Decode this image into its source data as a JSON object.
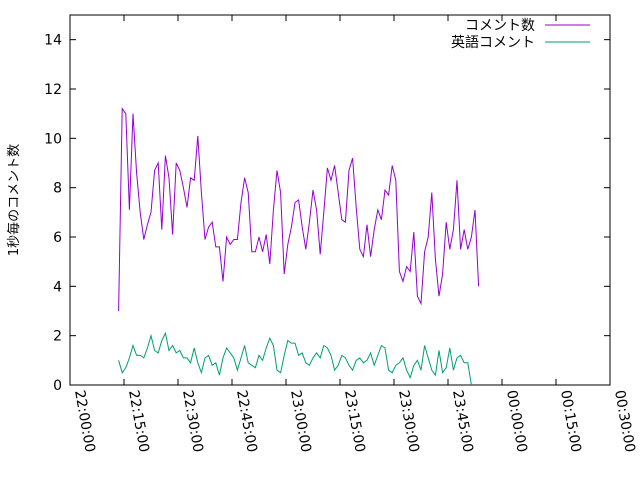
{
  "chart_data": {
    "type": "line",
    "title": "",
    "xlabel": "",
    "ylabel": "1秒毎のコメント数",
    "x_range": [
      "22:00:00",
      "00:30:00"
    ],
    "ylim": [
      0,
      15
    ],
    "y_ticks": [
      "0",
      "2",
      "4",
      "6",
      "8",
      "10",
      "12",
      "14"
    ],
    "x_ticks": [
      "22:00:00",
      "22:15:00",
      "22:30:00",
      "22:45:00",
      "23:00:00",
      "23:15:00",
      "23:30:00",
      "23:45:00",
      "00:00:00",
      "00:15:00",
      "00:30:00"
    ],
    "grid": false,
    "legend_position": "top-right",
    "series": [
      {
        "name": "コメント数",
        "color": "#9400d3",
        "values": [
          [
            "22:13:30",
            3.0
          ],
          [
            "22:14:30",
            11.2
          ],
          [
            "22:15:30",
            11.0
          ],
          [
            "22:16:30",
            7.1
          ],
          [
            "22:17:30",
            11.0
          ],
          [
            "22:18:30",
            8.6
          ],
          [
            "22:19:30",
            7.0
          ],
          [
            "22:20:30",
            5.9
          ],
          [
            "22:21:30",
            6.5
          ],
          [
            "22:22:30",
            7.0
          ],
          [
            "22:23:30",
            8.7
          ],
          [
            "22:24:30",
            9.0
          ],
          [
            "22:25:30",
            6.3
          ],
          [
            "22:26:30",
            9.3
          ],
          [
            "22:27:30",
            8.4
          ],
          [
            "22:28:30",
            6.1
          ],
          [
            "22:29:30",
            9.0
          ],
          [
            "22:30:30",
            8.7
          ],
          [
            "22:31:30",
            8.0
          ],
          [
            "22:32:30",
            7.2
          ],
          [
            "22:33:30",
            8.4
          ],
          [
            "22:34:30",
            8.3
          ],
          [
            "22:35:30",
            10.1
          ],
          [
            "22:36:30",
            7.8
          ],
          [
            "22:37:30",
            5.9
          ],
          [
            "22:38:30",
            6.4
          ],
          [
            "22:39:30",
            6.6
          ],
          [
            "22:40:30",
            5.6
          ],
          [
            "22:41:30",
            5.6
          ],
          [
            "22:42:30",
            4.2
          ],
          [
            "22:43:30",
            6.0
          ],
          [
            "22:44:30",
            5.7
          ],
          [
            "22:45:30",
            5.9
          ],
          [
            "22:46:30",
            5.9
          ],
          [
            "22:47:30",
            7.4
          ],
          [
            "22:48:30",
            8.4
          ],
          [
            "22:49:30",
            7.8
          ],
          [
            "22:50:30",
            5.4
          ],
          [
            "22:51:30",
            5.4
          ],
          [
            "22:52:30",
            6.0
          ],
          [
            "22:53:30",
            5.4
          ],
          [
            "22:54:30",
            6.1
          ],
          [
            "22:55:30",
            4.9
          ],
          [
            "22:56:30",
            7.1
          ],
          [
            "22:57:30",
            8.7
          ],
          [
            "22:58:30",
            7.8
          ],
          [
            "22:59:30",
            4.5
          ],
          [
            "23:00:30",
            5.7
          ],
          [
            "23:01:30",
            6.4
          ],
          [
            "23:02:30",
            7.4
          ],
          [
            "23:03:30",
            7.5
          ],
          [
            "23:04:30",
            6.4
          ],
          [
            "23:05:30",
            5.5
          ],
          [
            "23:06:30",
            6.6
          ],
          [
            "23:07:30",
            7.9
          ],
          [
            "23:08:30",
            7.1
          ],
          [
            "23:09:30",
            5.3
          ],
          [
            "23:10:30",
            7.0
          ],
          [
            "23:11:30",
            8.8
          ],
          [
            "23:12:30",
            8.3
          ],
          [
            "23:13:30",
            8.9
          ],
          [
            "23:14:30",
            7.8
          ],
          [
            "23:15:30",
            6.7
          ],
          [
            "23:16:30",
            6.6
          ],
          [
            "23:17:30",
            8.7
          ],
          [
            "23:18:30",
            9.2
          ],
          [
            "23:19:30",
            7.2
          ],
          [
            "23:20:30",
            5.5
          ],
          [
            "23:21:30",
            5.2
          ],
          [
            "23:22:30",
            6.5
          ],
          [
            "23:23:30",
            5.2
          ],
          [
            "23:24:30",
            6.3
          ],
          [
            "23:25:30",
            7.1
          ],
          [
            "23:26:30",
            6.7
          ],
          [
            "23:27:30",
            7.9
          ],
          [
            "23:28:30",
            7.7
          ],
          [
            "23:29:30",
            8.9
          ],
          [
            "23:30:30",
            8.3
          ],
          [
            "23:31:30",
            4.6
          ],
          [
            "23:32:30",
            4.2
          ],
          [
            "23:33:30",
            4.8
          ],
          [
            "23:34:30",
            4.6
          ],
          [
            "23:35:30",
            6.2
          ],
          [
            "23:36:30",
            3.6
          ],
          [
            "23:37:30",
            3.3
          ],
          [
            "23:38:30",
            5.4
          ],
          [
            "23:39:30",
            6.0
          ],
          [
            "23:40:30",
            7.8
          ],
          [
            "23:41:30",
            5.1
          ],
          [
            "23:42:30",
            3.6
          ],
          [
            "23:43:30",
            4.5
          ],
          [
            "23:44:30",
            6.6
          ],
          [
            "23:45:30",
            5.5
          ],
          [
            "23:46:30",
            6.3
          ],
          [
            "23:47:30",
            8.3
          ],
          [
            "23:48:30",
            5.5
          ],
          [
            "23:49:30",
            6.3
          ],
          [
            "23:50:30",
            5.5
          ],
          [
            "23:51:30",
            6.0
          ],
          [
            "23:52:30",
            7.1
          ],
          [
            "23:53:30",
            4.0
          ]
        ]
      },
      {
        "name": "英語コメント",
        "color": "#009e73",
        "values": [
          [
            "22:13:30",
            1.0
          ],
          [
            "22:14:30",
            0.5
          ],
          [
            "22:15:30",
            0.7
          ],
          [
            "22:16:30",
            1.1
          ],
          [
            "22:17:30",
            1.6
          ],
          [
            "22:18:30",
            1.2
          ],
          [
            "22:19:30",
            1.2
          ],
          [
            "22:20:30",
            1.1
          ],
          [
            "22:21:30",
            1.5
          ],
          [
            "22:22:30",
            2.0
          ],
          [
            "22:23:30",
            1.4
          ],
          [
            "22:24:30",
            1.3
          ],
          [
            "22:25:30",
            1.8
          ],
          [
            "22:26:30",
            2.1
          ],
          [
            "22:27:30",
            1.4
          ],
          [
            "22:28:30",
            1.6
          ],
          [
            "22:29:30",
            1.3
          ],
          [
            "22:30:30",
            1.4
          ],
          [
            "22:31:30",
            1.1
          ],
          [
            "22:32:30",
            1.1
          ],
          [
            "22:33:30",
            0.9
          ],
          [
            "22:34:30",
            1.5
          ],
          [
            "22:35:30",
            0.9
          ],
          [
            "22:36:30",
            0.5
          ],
          [
            "22:37:30",
            1.1
          ],
          [
            "22:38:30",
            1.2
          ],
          [
            "22:39:30",
            0.8
          ],
          [
            "22:40:30",
            0.9
          ],
          [
            "22:41:30",
            0.4
          ],
          [
            "22:42:30",
            1.1
          ],
          [
            "22:43:30",
            1.5
          ],
          [
            "22:44:30",
            1.3
          ],
          [
            "22:45:30",
            1.1
          ],
          [
            "22:46:30",
            0.6
          ],
          [
            "22:47:30",
            1.1
          ],
          [
            "22:48:30",
            1.6
          ],
          [
            "22:49:30",
            0.9
          ],
          [
            "22:50:30",
            0.8
          ],
          [
            "22:51:30",
            0.7
          ],
          [
            "22:52:30",
            1.2
          ],
          [
            "22:53:30",
            1.0
          ],
          [
            "22:54:30",
            1.5
          ],
          [
            "22:55:30",
            1.9
          ],
          [
            "22:56:30",
            1.6
          ],
          [
            "22:57:30",
            0.6
          ],
          [
            "22:58:30",
            0.5
          ],
          [
            "22:59:30",
            1.2
          ],
          [
            "23:00:30",
            1.8
          ],
          [
            "23:01:30",
            1.7
          ],
          [
            "23:02:30",
            1.7
          ],
          [
            "23:03:30",
            1.2
          ],
          [
            "23:04:30",
            1.3
          ],
          [
            "23:05:30",
            0.9
          ],
          [
            "23:06:30",
            0.8
          ],
          [
            "23:07:30",
            1.1
          ],
          [
            "23:08:30",
            1.3
          ],
          [
            "23:09:30",
            1.1
          ],
          [
            "23:10:30",
            1.6
          ],
          [
            "23:11:30",
            1.5
          ],
          [
            "23:12:30",
            1.2
          ],
          [
            "23:13:30",
            0.6
          ],
          [
            "23:14:30",
            0.8
          ],
          [
            "23:15:30",
            1.2
          ],
          [
            "23:16:30",
            1.1
          ],
          [
            "23:17:30",
            0.8
          ],
          [
            "23:18:30",
            0.6
          ],
          [
            "23:19:30",
            1.0
          ],
          [
            "23:20:30",
            1.1
          ],
          [
            "23:21:30",
            0.9
          ],
          [
            "23:22:30",
            1.0
          ],
          [
            "23:23:30",
            1.3
          ],
          [
            "23:24:30",
            0.8
          ],
          [
            "23:25:30",
            1.2
          ],
          [
            "23:26:30",
            1.6
          ],
          [
            "23:27:30",
            1.5
          ],
          [
            "23:28:30",
            0.6
          ],
          [
            "23:29:30",
            0.5
          ],
          [
            "23:30:30",
            0.8
          ],
          [
            "23:31:30",
            0.9
          ],
          [
            "23:32:30",
            1.1
          ],
          [
            "23:33:30",
            0.6
          ],
          [
            "23:34:30",
            0.3
          ],
          [
            "23:35:30",
            0.8
          ],
          [
            "23:36:30",
            1.0
          ],
          [
            "23:37:30",
            0.6
          ],
          [
            "23:38:30",
            1.6
          ],
          [
            "23:39:30",
            1.1
          ],
          [
            "23:40:30",
            0.6
          ],
          [
            "23:41:30",
            0.4
          ],
          [
            "23:42:30",
            1.4
          ],
          [
            "23:43:30",
            0.5
          ],
          [
            "23:44:30",
            0.7
          ],
          [
            "23:45:30",
            1.5
          ],
          [
            "23:46:30",
            0.6
          ],
          [
            "23:47:30",
            1.1
          ],
          [
            "23:48:30",
            1.2
          ],
          [
            "23:49:30",
            0.9
          ],
          [
            "23:50:30",
            0.9
          ],
          [
            "23:51:30",
            0.0
          ]
        ]
      }
    ]
  }
}
